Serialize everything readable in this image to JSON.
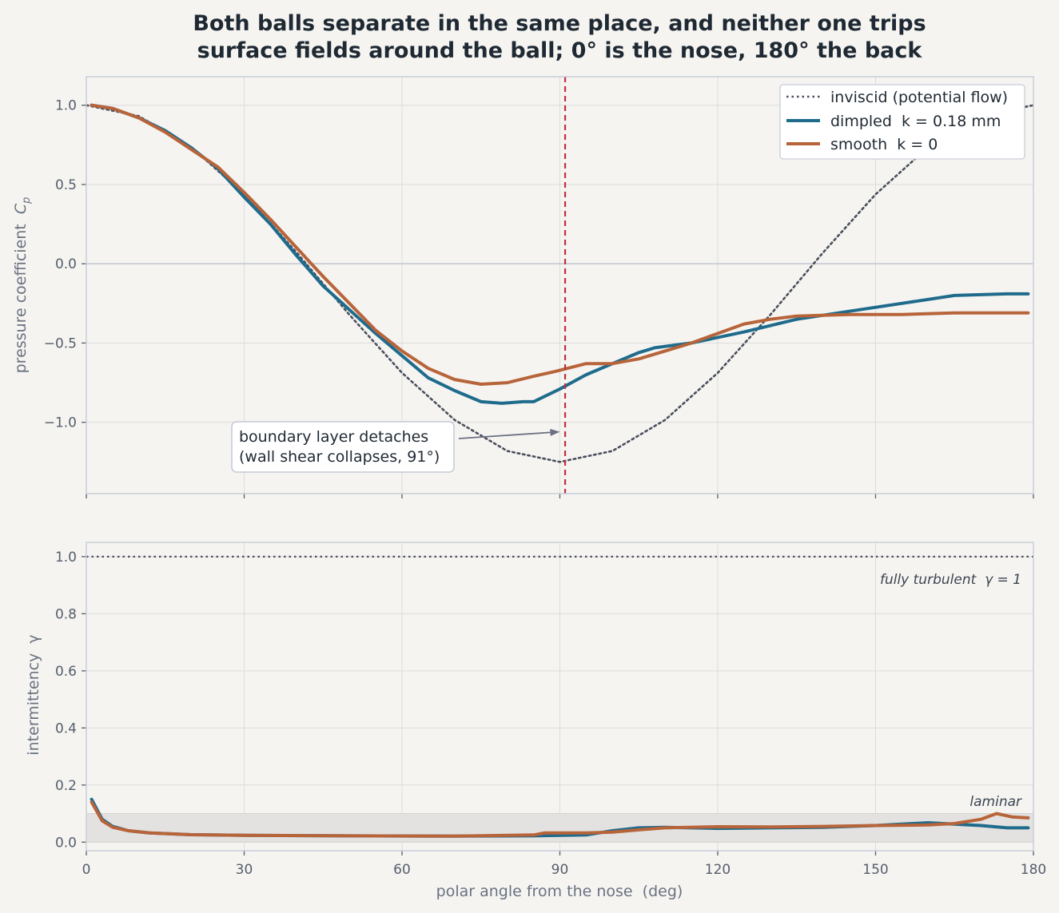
{
  "title_line1": "Both balls separate in the same place, and neither one trips",
  "title_line2": "surface fields around the ball; 0° is the nose, 180° the back",
  "colors": {
    "dimpled": "#1f6b8c",
    "smooth": "#b8643a",
    "inviscid": "#4a4f5c",
    "separation": "#c0303f",
    "grid": "#dcdcdc",
    "laminar_band": "#e3e2e0"
  },
  "chart_data": [
    {
      "type": "line",
      "panel": "top",
      "ylabel": "pressure coefficient  C_p",
      "xlim": [
        0,
        180
      ],
      "ylim": [
        -1.45,
        1.18
      ],
      "yticks": [
        1.0,
        0.5,
        0.0,
        -0.5,
        -1.0
      ],
      "ytick_labels": [
        "1.0",
        "0.5",
        "0.0",
        "−0.5",
        "−1.0"
      ],
      "grid": true,
      "legend_position": "top-right",
      "separation_angle": 91,
      "annotation": {
        "line1": "boundary layer detaches",
        "line2": "(wall shear collapses, 91°)",
        "arrow_target": [
          90,
          -1.06
        ]
      },
      "series": [
        {
          "name": "inviscid (potential flow)",
          "style": "dotted",
          "x": [
            0,
            10,
            20,
            30,
            40,
            50,
            60,
            70,
            80,
            90,
            100,
            110,
            120,
            130,
            140,
            150,
            160,
            170,
            180
          ],
          "y": [
            1.0,
            0.931,
            0.735,
            0.438,
            0.07,
            -0.322,
            -0.688,
            -0.985,
            -1.181,
            -1.25,
            -1.181,
            -0.985,
            -0.688,
            -0.322,
            0.07,
            0.438,
            0.735,
            0.931,
            1.0
          ]
        },
        {
          "name": "dimpled  k = 0.18 mm",
          "style": "solid",
          "x": [
            1,
            5,
            10,
            15,
            20,
            25,
            30,
            35,
            40,
            45,
            50,
            55,
            60,
            65,
            70,
            75,
            79,
            83,
            85,
            90,
            95,
            100,
            105,
            108,
            115,
            125,
            135,
            145,
            155,
            165,
            175,
            179
          ],
          "y": [
            1.0,
            0.98,
            0.92,
            0.84,
            0.73,
            0.6,
            0.42,
            0.25,
            0.05,
            -0.14,
            -0.29,
            -0.44,
            -0.58,
            -0.72,
            -0.8,
            -0.87,
            -0.88,
            -0.87,
            -0.87,
            -0.79,
            -0.7,
            -0.63,
            -0.56,
            -0.53,
            -0.5,
            -0.43,
            -0.35,
            -0.3,
            -0.25,
            -0.2,
            -0.19,
            -0.19
          ]
        },
        {
          "name": "smooth  k = 0",
          "style": "solid",
          "x": [
            1,
            5,
            10,
            15,
            20,
            25,
            30,
            35,
            40,
            45,
            50,
            55,
            60,
            65,
            70,
            75,
            80,
            85,
            89,
            95,
            100,
            105,
            110,
            115,
            120,
            125,
            130,
            135,
            145,
            155,
            165,
            175,
            179
          ],
          "y": [
            1.0,
            0.98,
            0.92,
            0.83,
            0.72,
            0.61,
            0.45,
            0.28,
            0.1,
            -0.08,
            -0.25,
            -0.42,
            -0.55,
            -0.66,
            -0.73,
            -0.76,
            -0.75,
            -0.71,
            -0.68,
            -0.63,
            -0.63,
            -0.6,
            -0.55,
            -0.5,
            -0.44,
            -0.38,
            -0.35,
            -0.33,
            -0.32,
            -0.32,
            -0.31,
            -0.31,
            -0.31
          ]
        }
      ]
    },
    {
      "type": "line",
      "panel": "bottom",
      "xlabel": "polar angle from the nose  (deg)",
      "ylabel": "intermittency  γ",
      "xlim": [
        0,
        180
      ],
      "ylim": [
        -0.03,
        1.05
      ],
      "xticks": [
        0,
        30,
        60,
        90,
        120,
        150,
        180
      ],
      "yticks": [
        0.0,
        0.2,
        0.4,
        0.6,
        0.8,
        1.0
      ],
      "ytick_labels": [
        "0.0",
        "0.2",
        "0.4",
        "0.6",
        "0.8",
        "1.0"
      ],
      "grid": true,
      "reference_line": {
        "y": 1.0,
        "style": "dotted",
        "label": "fully turbulent  γ = 1"
      },
      "band": {
        "y_range": [
          0,
          0.1
        ],
        "label": "laminar"
      },
      "series": [
        {
          "name": "dimpled  k = 0.18 mm",
          "x": [
            1,
            3,
            5,
            8,
            12,
            20,
            30,
            50,
            70,
            85,
            95,
            100,
            105,
            110,
            120,
            130,
            140,
            150,
            160,
            170,
            175,
            179
          ],
          "y": [
            0.15,
            0.08,
            0.055,
            0.04,
            0.032,
            0.026,
            0.024,
            0.022,
            0.021,
            0.022,
            0.025,
            0.04,
            0.05,
            0.052,
            0.048,
            0.05,
            0.052,
            0.058,
            0.068,
            0.058,
            0.05,
            0.05
          ]
        },
        {
          "name": "smooth  k = 0",
          "x": [
            1,
            3,
            5,
            8,
            12,
            20,
            30,
            50,
            70,
            85,
            87,
            95,
            100,
            105,
            110,
            120,
            130,
            140,
            150,
            160,
            165,
            170,
            173,
            176,
            179
          ],
          "y": [
            0.14,
            0.075,
            0.052,
            0.04,
            0.032,
            0.026,
            0.024,
            0.022,
            0.021,
            0.025,
            0.032,
            0.032,
            0.035,
            0.043,
            0.05,
            0.054,
            0.053,
            0.055,
            0.058,
            0.06,
            0.065,
            0.08,
            0.1,
            0.088,
            0.085
          ]
        }
      ]
    }
  ]
}
